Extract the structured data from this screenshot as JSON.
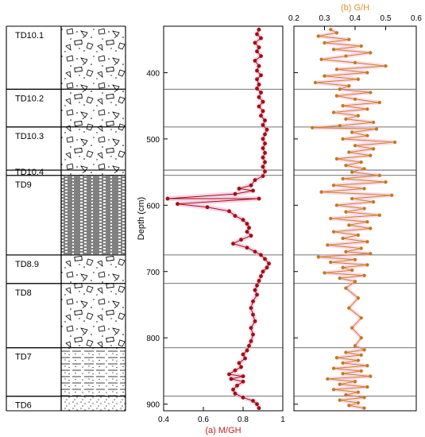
{
  "chart_data": [
    {
      "type": "table",
      "rows": [
        {
          "label": "TD10.1",
          "top": 330,
          "bottom": 425,
          "pattern": "breccia"
        },
        {
          "label": "TD10.2",
          "top": 425,
          "bottom": 482,
          "pattern": "breccia"
        },
        {
          "label": "TD10.3",
          "top": 482,
          "bottom": 547,
          "pattern": "breccia"
        },
        {
          "label": "TD10.4",
          "top": 547,
          "bottom": 555,
          "pattern": "breccia"
        },
        {
          "label": "TD9",
          "top": 555,
          "bottom": 675,
          "pattern": "laminated"
        },
        {
          "label": "TD8.9",
          "top": 675,
          "bottom": 718,
          "pattern": "breccia"
        },
        {
          "label": "TD8",
          "top": 718,
          "bottom": 815,
          "pattern": "breccia"
        },
        {
          "label": "TD7",
          "top": 815,
          "bottom": 888,
          "pattern": "sand-silt"
        },
        {
          "label": "TD6",
          "top": 888,
          "bottom": 910,
          "pattern": "sand"
        }
      ]
    },
    {
      "type": "line",
      "xlabel": "(a) M/GH",
      "ylabel": "Depth (cm)",
      "xlim": [
        0.4,
        1.0
      ],
      "ylim": [
        910,
        330
      ],
      "xticks": [
        0.4,
        0.6,
        0.8,
        1
      ],
      "yticks": [
        400,
        500,
        600,
        700,
        800,
        900
      ],
      "boundaries": [
        425,
        482,
        547,
        555,
        675,
        718,
        815,
        888
      ],
      "color": "#a01010",
      "series": [
        {
          "name": "",
          "points": [
            [
              0.88,
              335
            ],
            [
              0.87,
              342
            ],
            [
              0.89,
              348
            ],
            [
              0.86,
              355
            ],
            [
              0.88,
              362
            ],
            [
              0.87,
              368
            ],
            [
              0.89,
              375
            ],
            [
              0.86,
              382
            ],
            [
              0.88,
              390
            ],
            [
              0.87,
              397
            ],
            [
              0.89,
              404
            ],
            [
              0.87,
              410
            ],
            [
              0.88,
              418
            ],
            [
              0.87,
              424
            ],
            [
              0.89,
              430
            ],
            [
              0.88,
              437
            ],
            [
              0.9,
              444
            ],
            [
              0.88,
              451
            ],
            [
              0.9,
              458
            ],
            [
              0.89,
              465
            ],
            [
              0.91,
              472
            ],
            [
              0.9,
              479
            ],
            [
              0.92,
              486
            ],
            [
              0.91,
              493
            ],
            [
              0.9,
              500
            ],
            [
              0.91,
              507
            ],
            [
              0.9,
              514
            ],
            [
              0.91,
              521
            ],
            [
              0.9,
              528
            ],
            [
              0.91,
              535
            ],
            [
              0.9,
              542
            ],
            [
              0.91,
              549
            ],
            [
              0.9,
              556
            ],
            [
              0.86,
              562
            ],
            [
              0.84,
              570
            ],
            [
              0.78,
              575
            ],
            [
              0.85,
              578
            ],
            [
              0.76,
              583
            ],
            [
              0.42,
              590
            ],
            [
              0.88,
              590
            ],
            [
              0.47,
              598
            ],
            [
              0.62,
              603
            ],
            [
              0.73,
              609
            ],
            [
              0.76,
              616
            ],
            [
              0.8,
              622
            ],
            [
              0.82,
              628
            ],
            [
              0.83,
              634
            ],
            [
              0.82,
              640
            ],
            [
              0.84,
              646
            ],
            [
              0.79,
              652
            ],
            [
              0.75,
              658
            ],
            [
              0.82,
              664
            ],
            [
              0.86,
              670
            ],
            [
              0.89,
              675
            ],
            [
              0.91,
              681
            ],
            [
              0.93,
              688
            ],
            [
              0.92,
              694
            ],
            [
              0.9,
              700
            ],
            [
              0.89,
              707
            ],
            [
              0.88,
              714
            ],
            [
              0.87,
              721
            ],
            [
              0.86,
              728
            ],
            [
              0.87,
              735
            ],
            [
              0.85,
              745
            ],
            [
              0.84,
              755
            ],
            [
              0.85,
              765
            ],
            [
              0.86,
              775
            ],
            [
              0.84,
              785
            ],
            [
              0.85,
              795
            ],
            [
              0.84,
              805
            ],
            [
              0.83,
              812
            ],
            [
              0.82,
              819
            ],
            [
              0.8,
              825
            ],
            [
              0.81,
              831
            ],
            [
              0.78,
              838
            ],
            [
              0.79,
              844
            ],
            [
              0.76,
              849
            ],
            [
              0.73,
              855
            ],
            [
              0.8,
              858
            ],
            [
              0.74,
              862
            ],
            [
              0.8,
              866
            ],
            [
              0.77,
              872
            ],
            [
              0.75,
              878
            ],
            [
              0.76,
              884
            ],
            [
              0.8,
              890
            ],
            [
              0.85,
              895
            ],
            [
              0.87,
              900
            ],
            [
              0.88,
              906
            ]
          ]
        }
      ]
    },
    {
      "type": "line",
      "xlabel": "(b) G/H",
      "xlim": [
        0.2,
        0.6
      ],
      "ylim": [
        910,
        330
      ],
      "xticks": [
        0.2,
        0.3,
        0.4,
        0.5,
        0.6
      ],
      "boundaries": [
        425,
        482,
        547,
        555,
        675,
        718,
        815,
        888
      ],
      "color": "#d08020",
      "series": [
        {
          "name": "",
          "points": [
            [
              0.32,
              335
            ],
            [
              0.34,
              340
            ],
            [
              0.28,
              345
            ],
            [
              0.38,
              350
            ],
            [
              0.3,
              355
            ],
            [
              0.42,
              360
            ],
            [
              0.33,
              365
            ],
            [
              0.45,
              370
            ],
            [
              0.37,
              375
            ],
            [
              0.29,
              380
            ],
            [
              0.4,
              385
            ],
            [
              0.5,
              390
            ],
            [
              0.34,
              395
            ],
            [
              0.44,
              400
            ],
            [
              0.3,
              405
            ],
            [
              0.41,
              410
            ],
            [
              0.27,
              415
            ],
            [
              0.38,
              420
            ],
            [
              0.35,
              425
            ],
            [
              0.45,
              430
            ],
            [
              0.34,
              435
            ],
            [
              0.4,
              440
            ],
            [
              0.48,
              445
            ],
            [
              0.36,
              450
            ],
            [
              0.44,
              455
            ],
            [
              0.33,
              460
            ],
            [
              0.41,
              465
            ],
            [
              0.37,
              470
            ],
            [
              0.46,
              475
            ],
            [
              0.35,
              480
            ],
            [
              0.26,
              483
            ],
            [
              0.47,
              485
            ],
            [
              0.39,
              490
            ],
            [
              0.44,
              495
            ],
            [
              0.36,
              500
            ],
            [
              0.53,
              505
            ],
            [
              0.4,
              510
            ],
            [
              0.46,
              515
            ],
            [
              0.38,
              520
            ],
            [
              0.45,
              525
            ],
            [
              0.34,
              530
            ],
            [
              0.42,
              535
            ],
            [
              0.37,
              540
            ],
            [
              0.43,
              545
            ],
            [
              0.39,
              550
            ],
            [
              0.48,
              555
            ],
            [
              0.36,
              560
            ],
            [
              0.5,
              565
            ],
            [
              0.33,
              570
            ],
            [
              0.43,
              575
            ],
            [
              0.29,
              580
            ],
            [
              0.52,
              585
            ],
            [
              0.39,
              590
            ],
            [
              0.46,
              595
            ],
            [
              0.34,
              600
            ],
            [
              0.43,
              605
            ],
            [
              0.37,
              610
            ],
            [
              0.48,
              615
            ],
            [
              0.32,
              620
            ],
            [
              0.44,
              625
            ],
            [
              0.38,
              630
            ],
            [
              0.45,
              635
            ],
            [
              0.33,
              640
            ],
            [
              0.41,
              645
            ],
            [
              0.36,
              650
            ],
            [
              0.44,
              655
            ],
            [
              0.31,
              660
            ],
            [
              0.42,
              665
            ],
            [
              0.37,
              670
            ],
            [
              0.45,
              673
            ],
            [
              0.28,
              678
            ],
            [
              0.4,
              682
            ],
            [
              0.32,
              686
            ],
            [
              0.44,
              690
            ],
            [
              0.36,
              694
            ],
            [
              0.39,
              698
            ],
            [
              0.3,
              702
            ],
            [
              0.43,
              706
            ],
            [
              0.35,
              710
            ],
            [
              0.4,
              715
            ],
            [
              0.37,
              725
            ],
            [
              0.41,
              740
            ],
            [
              0.38,
              755
            ],
            [
              0.42,
              770
            ],
            [
              0.39,
              785
            ],
            [
              0.42,
              800
            ],
            [
              0.4,
              812
            ],
            [
              0.43,
              818
            ],
            [
              0.37,
              822
            ],
            [
              0.42,
              826
            ],
            [
              0.34,
              830
            ],
            [
              0.41,
              834
            ],
            [
              0.36,
              838
            ],
            [
              0.44,
              842
            ],
            [
              0.33,
              846
            ],
            [
              0.42,
              850
            ],
            [
              0.36,
              854
            ],
            [
              0.45,
              858
            ],
            [
              0.31,
              862
            ],
            [
              0.4,
              866
            ],
            [
              0.35,
              870
            ],
            [
              0.44,
              874
            ],
            [
              0.33,
              878
            ],
            [
              0.41,
              882
            ],
            [
              0.37,
              886
            ],
            [
              0.43,
              890
            ],
            [
              0.35,
              894
            ],
            [
              0.41,
              898
            ],
            [
              0.38,
              902
            ],
            [
              0.43,
              906
            ]
          ]
        }
      ]
    }
  ]
}
